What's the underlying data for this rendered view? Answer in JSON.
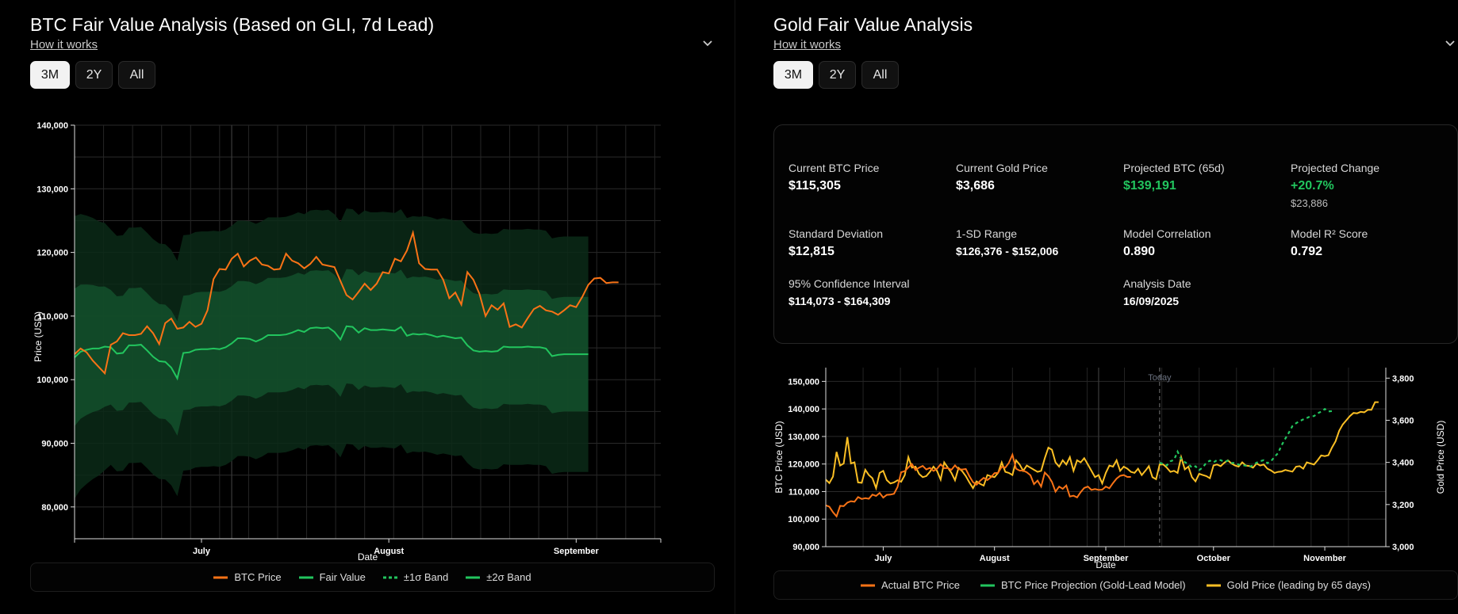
{
  "left": {
    "title": "BTC Fair Value Analysis (Based on GLI, 7d Lead)",
    "how_it_works": "How it works",
    "ranges": [
      "3M",
      "2Y",
      "All"
    ],
    "active_range": "3M",
    "legend": [
      "BTC Price",
      "Fair Value",
      "±1σ Band",
      "±2σ Band"
    ]
  },
  "right": {
    "title": "Gold Fair Value Analysis",
    "how_it_works": "How it works",
    "ranges": [
      "3M",
      "2Y",
      "All"
    ],
    "active_range": "3M",
    "legend": [
      "Actual BTC Price",
      "BTC Price Projection (Gold-Lead Model)",
      "Gold Price (leading by 65 days)"
    ],
    "stats": {
      "current_btc_label": "Current BTC Price",
      "current_btc_value": "$115,305",
      "current_gold_label": "Current Gold Price",
      "current_gold_value": "$3,686",
      "projected_btc_label": "Projected BTC (65d)",
      "projected_btc_value": "$139,191",
      "projected_change_label": "Projected Change",
      "projected_change_value": "+20.7%",
      "projected_change_sub": "$23,886",
      "std_dev_label": "Standard Deviation",
      "std_dev_value": "$12,815",
      "sd_range_label": "1-SD Range",
      "sd_range_value": "$126,376 - $152,006",
      "model_corr_label": "Model Correlation",
      "model_corr_value": "0.890",
      "r2_label": "Model R² Score",
      "r2_value": "0.792",
      "ci_label": "95% Confidence Interval",
      "ci_value": "$114,073 - $164,309",
      "analysis_date_label": "Analysis Date",
      "analysis_date_value": "16/09/2025"
    }
  },
  "colors": {
    "btc": "#f97316",
    "fair": "#22c55e",
    "band1": "#14532d",
    "band2": "#0b2a17",
    "gold": "#fbbf24",
    "projection": "#22c55e"
  },
  "chart_data": [
    {
      "type": "line",
      "title": "",
      "xlabel": "Date",
      "ylabel": "Price (USD)",
      "ylim": [
        75000,
        140000
      ],
      "yticks": [
        80000,
        90000,
        100000,
        110000,
        120000,
        130000,
        140000
      ],
      "ytick_labels": [
        "80,000",
        "90,000",
        "100,000",
        "110,000",
        "120,000",
        "130,000",
        "140,000"
      ],
      "xticks": [
        {
          "label": "July",
          "day": 21
        },
        {
          "label": "August",
          "day": 52
        },
        {
          "label": "September",
          "day": 83
        }
      ],
      "x_domain_days": [
        0,
        97
      ],
      "grid": true,
      "legend_position": "bottom",
      "series": [
        {
          "name": "BTC Price",
          "x_start_day": 0,
          "values": [
            104000,
            104900,
            104300,
            103000,
            102000,
            101000,
            105500,
            106000,
            107300,
            107000,
            107000,
            107200,
            108400,
            107300,
            105600,
            108900,
            109600,
            108000,
            108200,
            109100,
            108300,
            108800,
            110900,
            115800,
            117400,
            117300,
            119000,
            119800,
            117800,
            118700,
            119200,
            118100,
            117900,
            117300,
            117400,
            119800,
            118700,
            118300,
            117500,
            118200,
            119300,
            118100,
            117900,
            117700,
            115500,
            113300,
            112600,
            113800,
            115100,
            114100,
            115100,
            116900,
            116700,
            119000,
            118600,
            120300,
            123100,
            118300,
            117400,
            117300,
            117300,
            115700,
            112800,
            113700,
            111800,
            116900,
            115700,
            113500,
            110000,
            111700,
            111000,
            112000,
            108300,
            108700,
            108200,
            109700,
            111100,
            111600,
            110900,
            110700,
            110200,
            110900,
            111700,
            111400,
            113000,
            114900,
            115900,
            116000,
            115200,
            115300,
            115300
          ]
        },
        {
          "name": "Fair Value",
          "x_start_day": 0,
          "values": [
            103500,
            104400,
            104700,
            104900,
            104900,
            105200,
            105100,
            104100,
            104200,
            105400,
            105400,
            105500,
            104600,
            103600,
            102900,
            102800,
            101900,
            100200,
            104200,
            104300,
            104700,
            104800,
            104800,
            104900,
            104800,
            105100,
            105700,
            106500,
            106500,
            106400,
            106000,
            106400,
            107000,
            107000,
            107000,
            107100,
            107400,
            107800,
            107500,
            108100,
            108200,
            108100,
            108200,
            107500,
            106300,
            108400,
            108300,
            107400,
            108100,
            107800,
            107800,
            107900,
            107800,
            107700,
            108300,
            106900,
            107200,
            107100,
            107200,
            107000,
            106700,
            106900,
            106700,
            106500,
            106600,
            105400,
            104600,
            104400,
            104500,
            104400,
            104500,
            105200,
            105100,
            105100,
            105100,
            105200,
            105100,
            105100,
            104900,
            103700,
            103900,
            104000,
            104000,
            104000,
            104000,
            104000
          ]
        }
      ],
      "bands": [
        {
          "name": "±2σ Band",
          "sigma_usd": 18500
        },
        {
          "name": "±1σ Band",
          "sigma_usd": 9000
        }
      ]
    },
    {
      "type": "line",
      "title": "",
      "xlabel": "Date",
      "ylabel": "BTC Price (USD)",
      "y2label": "Gold Price (USD)",
      "ylim": [
        90000,
        155000
      ],
      "y2lim": [
        3000,
        3850
      ],
      "yticks": [
        90000,
        100000,
        110000,
        120000,
        130000,
        140000,
        150000
      ],
      "ytick_labels": [
        "90,000",
        "100,000",
        "110,000",
        "120,000",
        "130,000",
        "140,000",
        "150,000"
      ],
      "y2ticks": [
        3000,
        3200,
        3400,
        3600,
        3800
      ],
      "y2tick_labels": [
        "3,000",
        "3,200",
        "3,400",
        "3,600",
        "3,800"
      ],
      "xticks": [
        {
          "label": "July",
          "day": 16
        },
        {
          "label": "August",
          "day": 47
        },
        {
          "label": "September",
          "day": 78
        },
        {
          "label": "October",
          "day": 108
        },
        {
          "label": "November",
          "day": 139
        }
      ],
      "x_domain_days": [
        0,
        156
      ],
      "today_day": 93,
      "today_label": "Today",
      "grid": true,
      "legend_position": "bottom",
      "series": [
        {
          "name": "Actual BTC Price",
          "axis": "left",
          "x_start_day": 0,
          "values": [
            105000,
            104500,
            102500,
            101000,
            104800,
            104700,
            106000,
            106500,
            106300,
            108000,
            107300,
            107600,
            107400,
            108900,
            108400,
            109500,
            107800,
            108800,
            108900,
            109200,
            111700,
            117000,
            117400,
            118800,
            120000,
            117800,
            118700,
            119300,
            118000,
            118600,
            117500,
            118300,
            119900,
            118500,
            118500,
            117900,
            119500,
            118100,
            118000,
            118200,
            115600,
            113400,
            112500,
            113900,
            115000,
            114200,
            115200,
            116700,
            116800,
            119000,
            118700,
            120400,
            123400,
            118300,
            117600,
            117600,
            117000,
            115900,
            112700,
            114000,
            111800,
            116900,
            115600,
            113500,
            110000,
            111800,
            111000,
            112200,
            108200,
            108500,
            107900,
            109800,
            111300,
            111800,
            110600,
            110900,
            110600,
            110700,
            111800,
            111200,
            113100,
            114700,
            115700,
            116000,
            115300,
            115300
          ]
        },
        {
          "name": "BTC Price Projection (Gold-Lead Model)",
          "axis": "left",
          "x_start_day": 93,
          "values": [
            120500,
            120000,
            119500,
            121000,
            121500,
            124500,
            121800,
            120700,
            120000,
            118700,
            119200,
            117800,
            118700,
            120500,
            121200,
            120600,
            121400,
            121400,
            120800,
            121200,
            120400,
            120400,
            119800,
            119600,
            119400,
            119000,
            119500,
            120500,
            121000,
            121400,
            120300,
            121000,
            122600,
            124000,
            126900,
            129200,
            131400,
            133800,
            134800,
            135600,
            136200,
            136700,
            137300,
            137400,
            138400,
            139000,
            140000,
            139100,
            139200
          ]
        },
        {
          "name": "Gold Price (leading by 65 days)",
          "axis": "right",
          "x_start_day": 0,
          "values": [
            3318,
            3302,
            3333,
            3450,
            3385,
            3395,
            3520,
            3395,
            3400,
            3305,
            3303,
            3365,
            3340,
            3325,
            3278,
            3350,
            3360,
            3316,
            3300,
            3305,
            3315,
            3308,
            3340,
            3425,
            3375,
            3380,
            3345,
            3330,
            3335,
            3355,
            3380,
            3359,
            3318,
            3400,
            3375,
            3350,
            3315,
            3374,
            3358,
            3335,
            3305,
            3278,
            3310,
            3298,
            3290,
            3340,
            3334,
            3330,
            3350,
            3400,
            3355,
            3350,
            3340,
            3410,
            3390,
            3360,
            3385,
            3375,
            3365,
            3355,
            3360,
            3420,
            3470,
            3460,
            3400,
            3380,
            3410,
            3390,
            3425,
            3360,
            3410,
            3400,
            3420,
            3390,
            3360,
            3330,
            3340,
            3300,
            3350,
            3385,
            3380,
            3410,
            3360,
            3380,
            3370,
            3355,
            3350,
            3370,
            3340,
            3360,
            3382,
            3330,
            3320,
            3390,
            3390,
            3375,
            3355,
            3360,
            3350,
            3425,
            3367,
            3380,
            3330,
            3310,
            3346,
            3340,
            3335,
            3325,
            3386,
            3390,
            3382,
            3398,
            3410,
            3395,
            3385,
            3380,
            3400,
            3385,
            3383,
            3375,
            3395,
            3385,
            3390,
            3370,
            3362,
            3350,
            3355,
            3357,
            3364,
            3360,
            3356,
            3380,
            3382,
            3370,
            3400,
            3395,
            3390,
            3410,
            3433,
            3430,
            3434,
            3470,
            3500,
            3550,
            3580,
            3600,
            3620,
            3635,
            3633,
            3640,
            3638,
            3650,
            3650,
            3686,
            3686
          ]
        }
      ]
    }
  ]
}
